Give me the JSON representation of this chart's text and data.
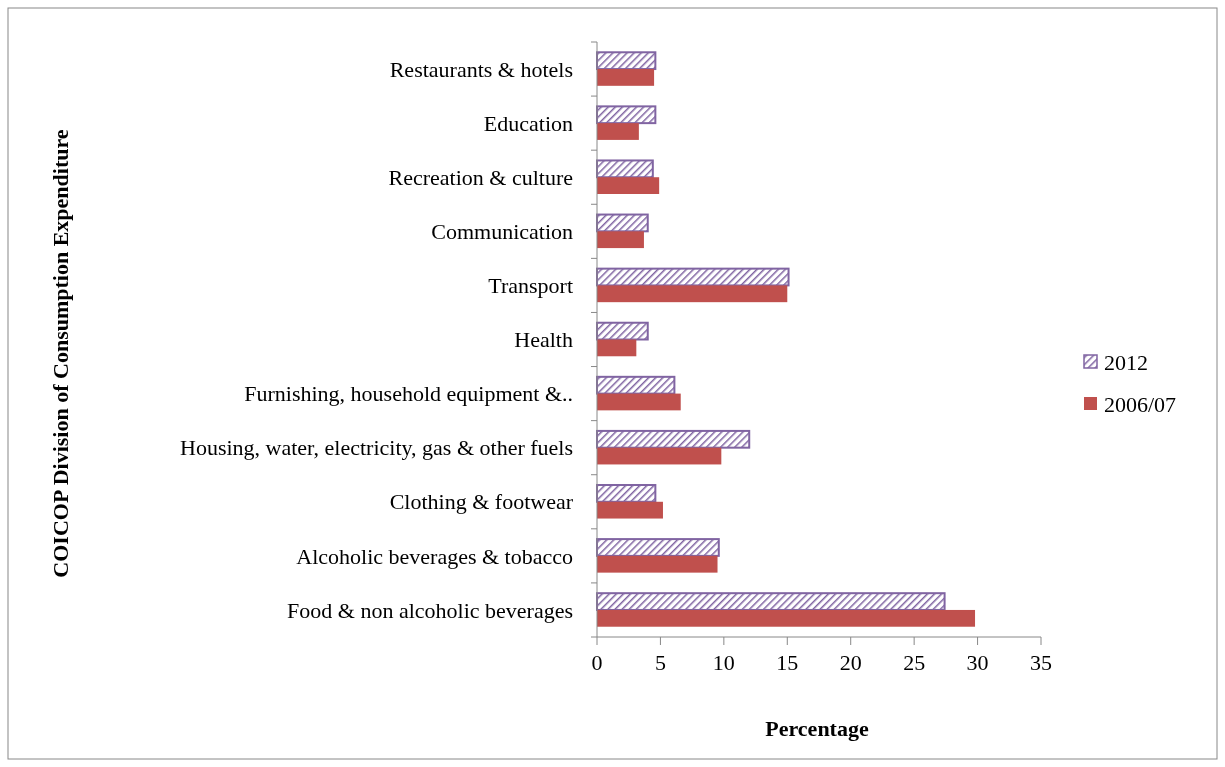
{
  "chart_data": {
    "type": "bar",
    "orientation": "horizontal",
    "xlabel": "Percentage",
    "ylabel": "COICOP Division of Consumption Expenditure",
    "categories": [
      "Restaurants & hotels",
      "Education",
      "Recreation & culture",
      "Communication",
      "Transport",
      "Health",
      "Furnishing, household equipment &..",
      "Housing, water, electricity, gas & other fuels",
      "Clothing & footwear",
      "Alcoholic beverages & tobacco",
      "Food & non alcoholic beverages"
    ],
    "series": [
      {
        "name": "2012",
        "color": "#8064a2",
        "values": [
          4.6,
          4.6,
          4.4,
          4.0,
          15.1,
          4.0,
          6.1,
          12.0,
          4.6,
          9.6,
          27.4
        ]
      },
      {
        "name": "2006/07",
        "color": "#c0504d",
        "values": [
          4.5,
          3.3,
          4.9,
          3.7,
          15.0,
          3.1,
          6.6,
          9.8,
          5.2,
          9.5,
          29.8
        ]
      }
    ],
    "xlim": [
      0,
      35
    ],
    "xticks": [
      0,
      5,
      10,
      15,
      20,
      25,
      30,
      35
    ],
    "grid": false,
    "legend": "right"
  }
}
